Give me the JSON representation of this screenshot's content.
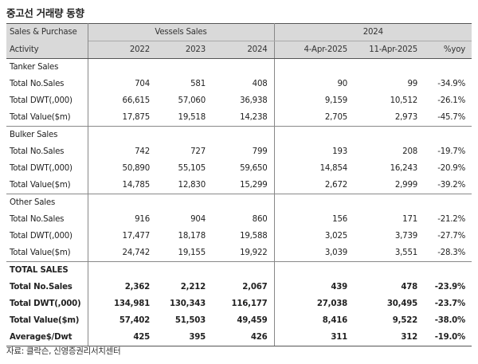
{
  "title": "중고선 거래량 동향",
  "source": "자료: 클락슨, 신영증권리서치센터",
  "header": {
    "row1": {
      "label": "Sales & Purchase",
      "group1": "Vessels Sales",
      "group2": "2024"
    },
    "row2": {
      "label": "Activity",
      "cols": [
        "2022",
        "2023",
        "2024",
        "4-Apr-2025",
        "11-Apr-2025",
        "%yoy"
      ]
    }
  },
  "sections": [
    {
      "name": "Tanker Sales",
      "rows": [
        {
          "label": "Total No.Sales",
          "values": [
            "704",
            "581",
            "408",
            "90",
            "99",
            "-34.9%"
          ]
        },
        {
          "label": "Total DWT(,000)",
          "values": [
            "66,615",
            "57,060",
            "36,938",
            "9,159",
            "10,512",
            "-26.1%"
          ]
        },
        {
          "label": "Total Value($m)",
          "values": [
            "17,875",
            "19,518",
            "14,238",
            "2,705",
            "2,973",
            "-45.7%"
          ]
        }
      ]
    },
    {
      "name": "Bulker Sales",
      "rows": [
        {
          "label": "Total No.Sales",
          "values": [
            "742",
            "727",
            "799",
            "193",
            "208",
            "-19.7%"
          ]
        },
        {
          "label": "Total DWT(,000)",
          "values": [
            "50,890",
            "55,105",
            "59,650",
            "14,854",
            "16,243",
            "-20.9%"
          ]
        },
        {
          "label": "Total Value($m)",
          "values": [
            "14,785",
            "12,830",
            "15,299",
            "2,672",
            "2,999",
            "-39.2%"
          ]
        }
      ]
    },
    {
      "name": "Other Sales",
      "rows": [
        {
          "label": "Total No.Sales",
          "values": [
            "916",
            "904",
            "860",
            "156",
            "171",
            "-21.2%"
          ]
        },
        {
          "label": "Total DWT(,000)",
          "values": [
            "17,477",
            "18,178",
            "19,588",
            "3,025",
            "3,739",
            "-27.7%"
          ]
        },
        {
          "label": "Total Value($m)",
          "values": [
            "24,742",
            "19,155",
            "19,922",
            "3,039",
            "3,551",
            "-28.3%"
          ]
        }
      ]
    },
    {
      "name": "TOTAL SALES",
      "bold": true,
      "rows": [
        {
          "label": "Total No.Sales",
          "values": [
            "2,362",
            "2,212",
            "2,067",
            "439",
            "478",
            "-23.9%"
          ]
        },
        {
          "label": "Total DWT(,000)",
          "values": [
            "134,981",
            "130,343",
            "116,177",
            "27,038",
            "30,495",
            "-23.7%"
          ]
        },
        {
          "label": "Total Value($m)",
          "values": [
            "57,402",
            "51,503",
            "49,459",
            "8,416",
            "9,522",
            "-38.0%"
          ]
        },
        {
          "label": "Average$/Dwt",
          "values": [
            "425",
            "395",
            "426",
            "311",
            "312",
            "-19.0%"
          ]
        }
      ]
    }
  ]
}
